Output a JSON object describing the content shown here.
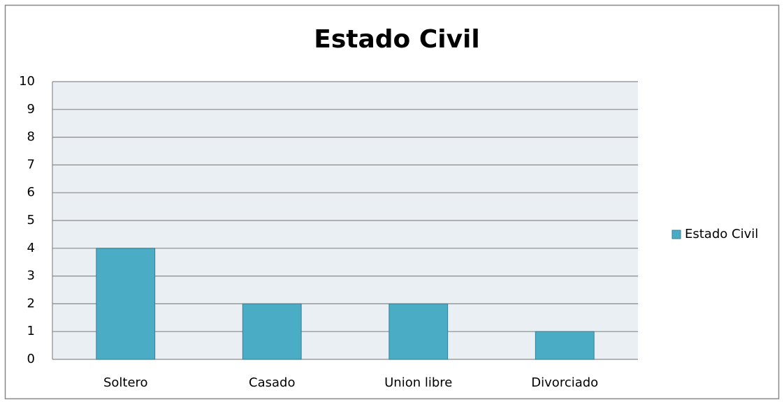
{
  "chart_data": {
    "type": "bar",
    "title": "Estado Civil",
    "categories": [
      "Soltero",
      "Casado",
      "Union libre",
      "Divorciado"
    ],
    "series": [
      {
        "name": "Estado Civil",
        "color": "#4bacc6",
        "values": [
          4,
          2,
          2,
          1
        ]
      }
    ],
    "ylim": [
      0,
      10
    ],
    "yticks": [
      0,
      1,
      2,
      3,
      4,
      5,
      6,
      7,
      8,
      9,
      10
    ],
    "grid": true,
    "legend": "right"
  }
}
